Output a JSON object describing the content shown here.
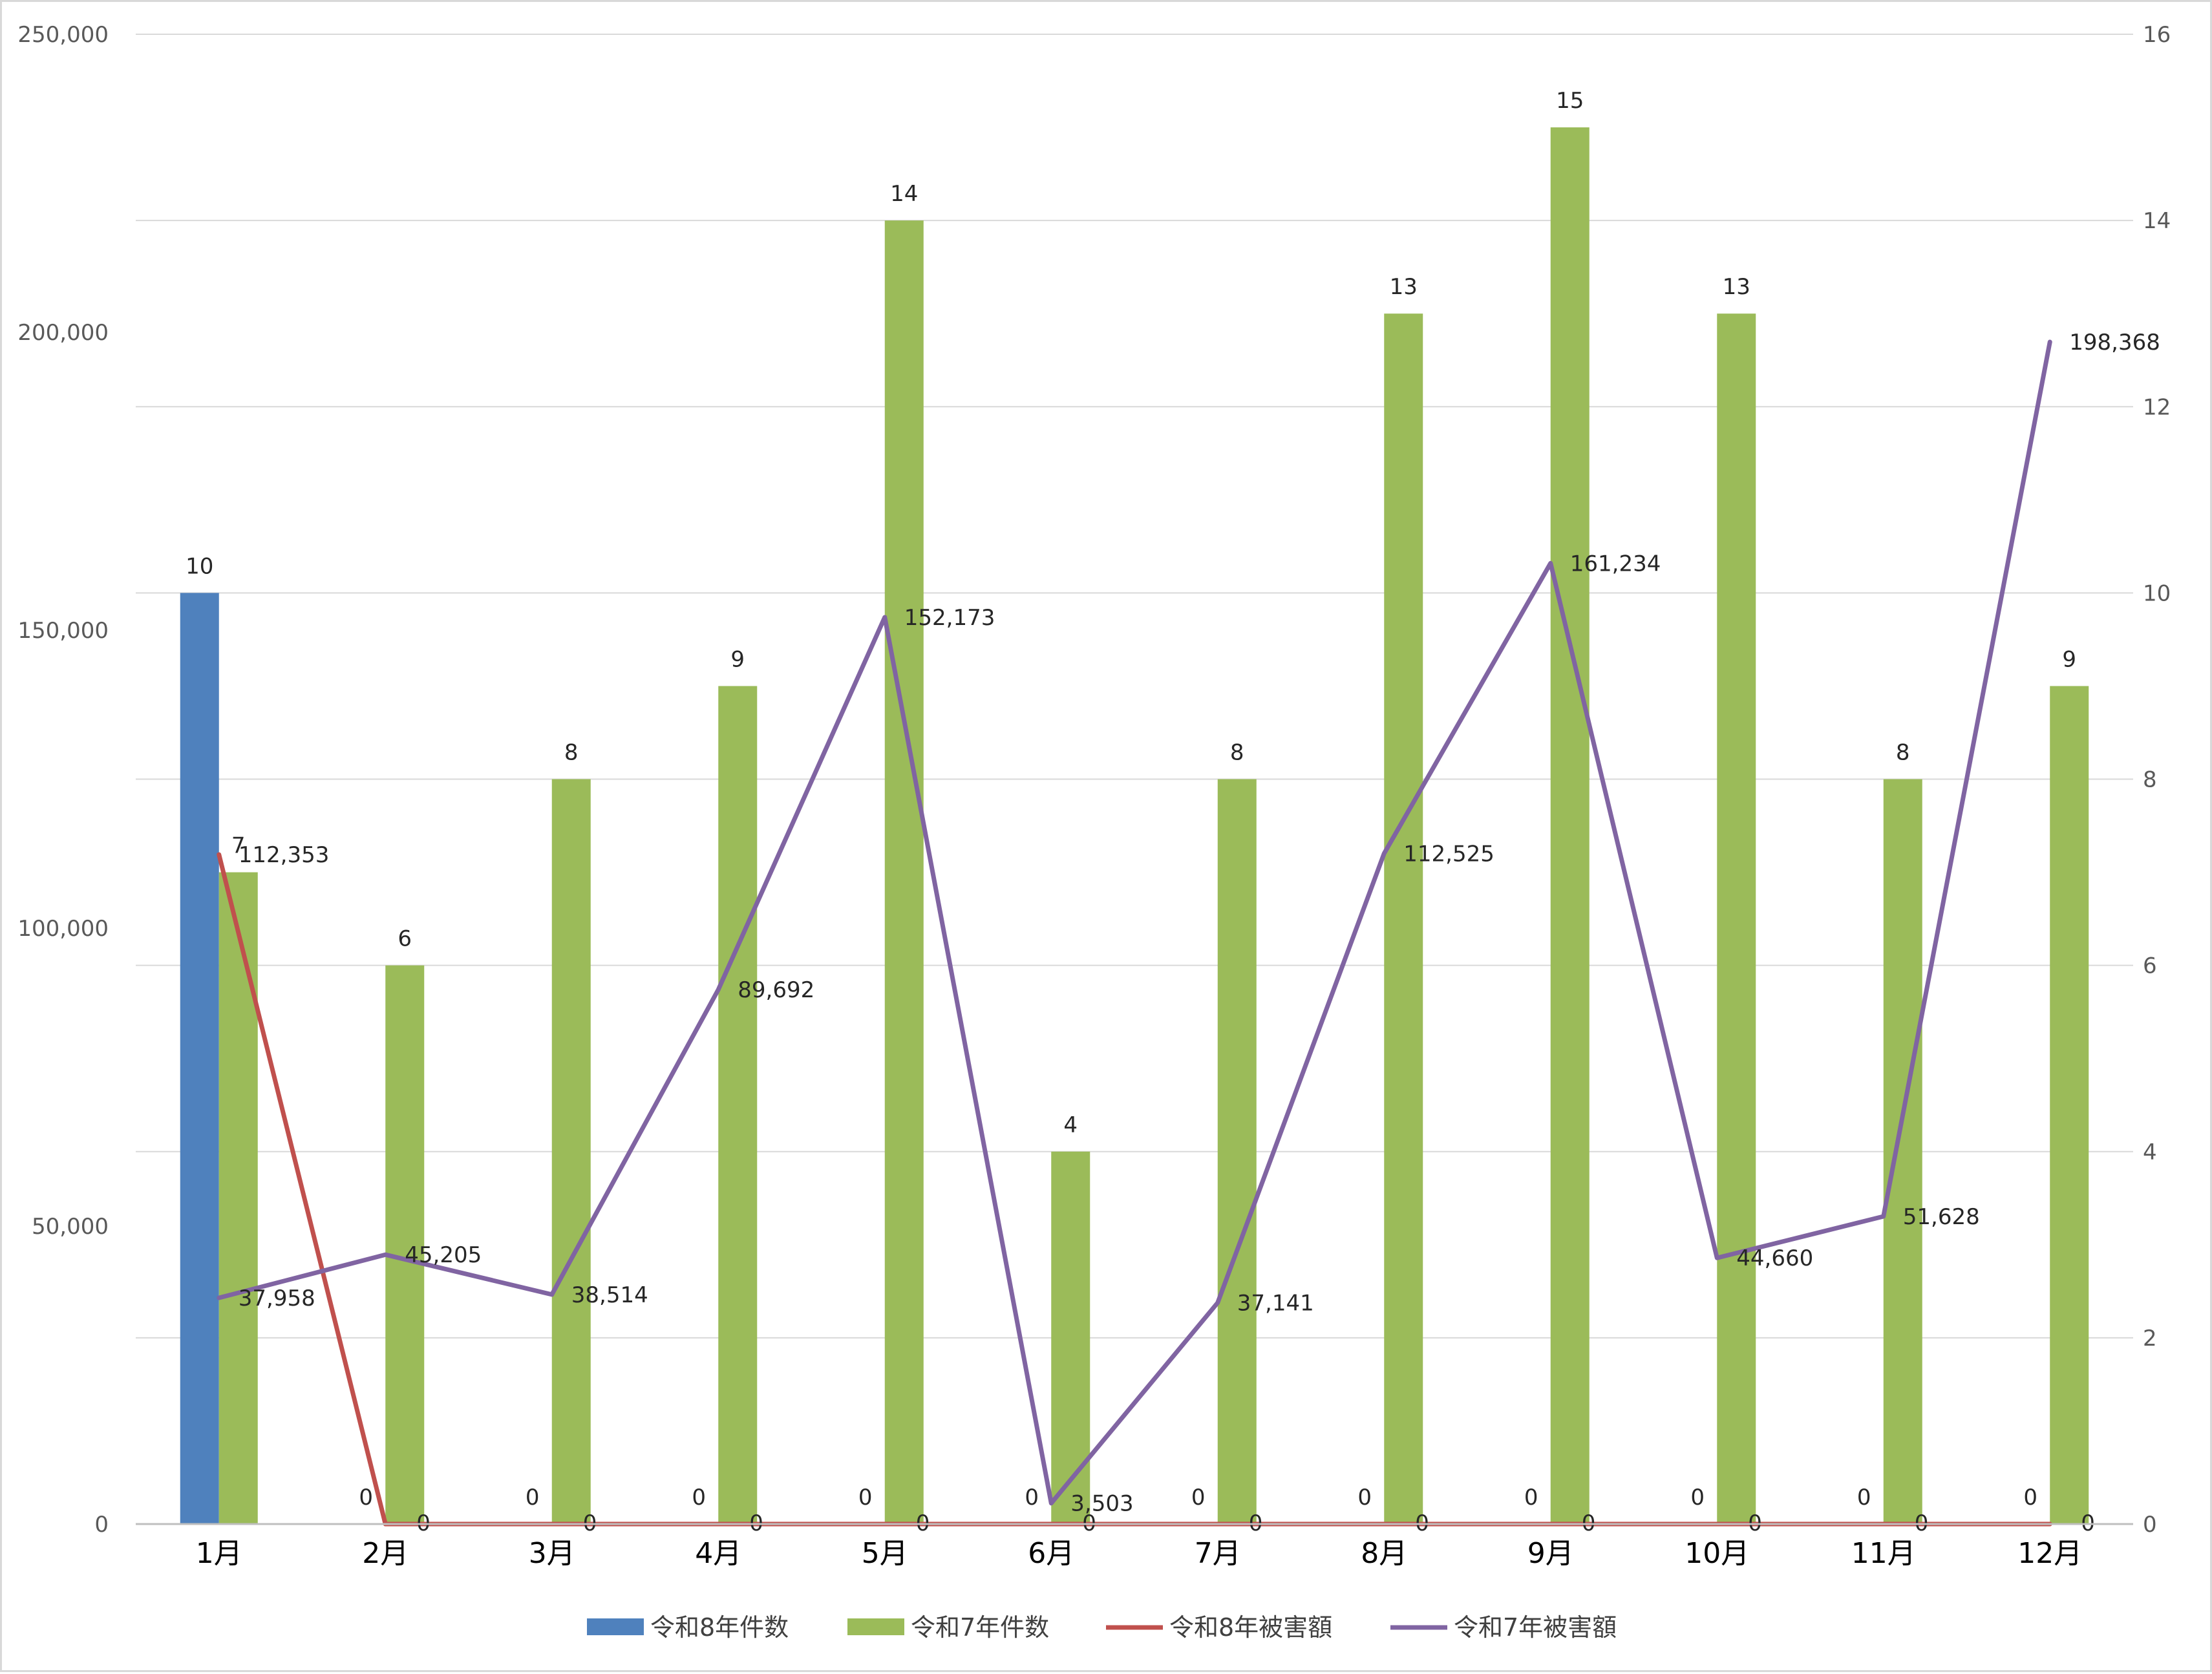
{
  "chart_data": {
    "type": "bar+line",
    "categories": [
      "1月",
      "2月",
      "3月",
      "4月",
      "5月",
      "6月",
      "7月",
      "8月",
      "9月",
      "10月",
      "11月",
      "12月"
    ],
    "bar_series": [
      {
        "name": "令和8年件数",
        "axis": "right",
        "color": "#4f81bd",
        "values": [
          10,
          null,
          null,
          null,
          null,
          null,
          null,
          null,
          null,
          null,
          null,
          null
        ],
        "labels": [
          "10",
          "0",
          "0",
          "0",
          "0",
          "0",
          "0",
          "0",
          "0",
          "0",
          "0",
          "0"
        ]
      },
      {
        "name": "令和7年件数",
        "axis": "right",
        "color": "#9bbb59",
        "values": [
          7,
          6,
          8,
          9,
          14,
          4,
          8,
          13,
          15,
          13,
          8,
          9
        ],
        "labels": [
          "7",
          "6",
          "8",
          "9",
          "14",
          "4",
          "8",
          "13",
          "15",
          "13",
          "8",
          "9"
        ]
      }
    ],
    "line_series": [
      {
        "name": "令和8年被害額",
        "axis": "left",
        "color": "#c0504d",
        "values": [
          112353,
          0,
          0,
          0,
          0,
          0,
          0,
          0,
          0,
          0,
          0,
          0
        ],
        "labels": [
          "112,353",
          "0",
          "0",
          "0",
          "0",
          "0",
          "0",
          "0",
          "0",
          "0",
          "0",
          "0"
        ]
      },
      {
        "name": "令和7年被害額",
        "axis": "left",
        "color": "#8064a2",
        "values": [
          37958,
          45205,
          38514,
          89692,
          152173,
          3503,
          37141,
          112525,
          161234,
          44660,
          51628,
          198368
        ],
        "labels": [
          "37,958",
          "45,205",
          "38,514",
          "89,692",
          "152,173",
          "3,503",
          "37,141",
          "112,525",
          "161,234",
          "44,660",
          "51,628",
          "198,368"
        ]
      }
    ],
    "y_left": {
      "min": 0,
      "max": 250000,
      "ticks": [
        0,
        50000,
        100000,
        150000,
        200000,
        250000
      ],
      "tick_labels": [
        "0",
        "50,000",
        "100,000",
        "150,000",
        "200,000",
        "250,000"
      ]
    },
    "y_right": {
      "min": 0,
      "max": 16,
      "ticks": [
        0,
        2,
        4,
        6,
        8,
        10,
        12,
        14,
        16
      ],
      "tick_labels": [
        "0",
        "2",
        "4",
        "6",
        "8",
        "10",
        "12",
        "14",
        "16"
      ]
    },
    "grid": true,
    "legend": {
      "position": "bottom",
      "items": [
        {
          "label": "令和8年件数",
          "kind": "bar",
          "color": "#4f81bd"
        },
        {
          "label": "令和7年件数",
          "kind": "bar",
          "color": "#9bbb59"
        },
        {
          "label": "令和8年被害額",
          "kind": "line",
          "color": "#c0504d"
        },
        {
          "label": "令和7年被害額",
          "kind": "line",
          "color": "#8064a2"
        }
      ]
    }
  }
}
